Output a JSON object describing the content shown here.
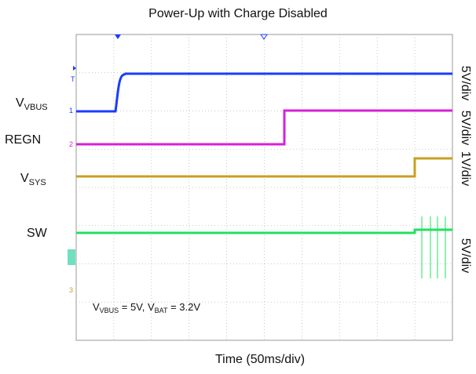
{
  "title": "Power-Up with Charge Disabled",
  "channels": [
    {
      "label": {
        "main": "V",
        "sub": "VBUS"
      },
      "scale": "5V/div"
    },
    {
      "label": {
        "main": "REGN"
      },
      "scale": "5V/div"
    },
    {
      "label": {
        "main": "V",
        "sub": "SYS"
      },
      "scale": "1V/div"
    },
    {
      "label": {
        "main": "SW"
      },
      "scale": "5V/div"
    }
  ],
  "annotation": [
    {
      "main": "V",
      "sub": "VBUS",
      "rest": " = 5V, "
    },
    {
      "main": "V",
      "sub": "BAT",
      "rest": " = 3.2V"
    }
  ],
  "x_label": "Time (50ms/div)"
}
